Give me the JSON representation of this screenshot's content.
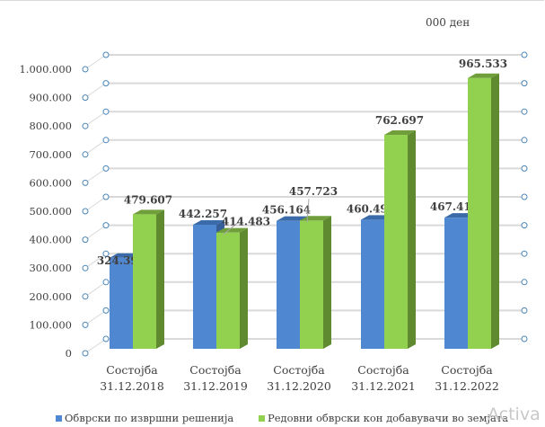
{
  "chart_data": {
    "type": "bar",
    "subtype": "3d-clustered-column",
    "unit_label": "000 ден",
    "categories": [
      [
        "Состојба",
        "31.12.2018"
      ],
      [
        "Состојба",
        "31.12.2019"
      ],
      [
        "Состојба",
        "31.12.2020"
      ],
      [
        "Состојба",
        "31.12.2021"
      ],
      [
        "Состојба",
        "31.12.2022"
      ]
    ],
    "series": [
      {
        "name": "Обврски по извршни решенија",
        "color": "#4f87d1",
        "values": [
          324393,
          442257,
          456164,
          460498,
          467416
        ],
        "labels": [
          "324.393",
          "442.257",
          "456.164",
          "460.498",
          "467.416"
        ]
      },
      {
        "name": "Редовни обврски кон добавувачи во земјата",
        "color": "#92d050",
        "values": [
          479607,
          414483,
          457723,
          762697,
          965533
        ],
        "labels": [
          "479.607",
          "414.483",
          "457.723",
          "762.697",
          "965.533"
        ]
      }
    ],
    "ylim": [
      0,
      1000000
    ],
    "yticks": [
      "0",
      "100.000",
      "200.000",
      "300.000",
      "400.000",
      "500.000",
      "600.000",
      "700.000",
      "800.000",
      "900.000",
      "1.000.000"
    ],
    "grid": true,
    "legend_position": "bottom"
  },
  "watermark": "Activa"
}
